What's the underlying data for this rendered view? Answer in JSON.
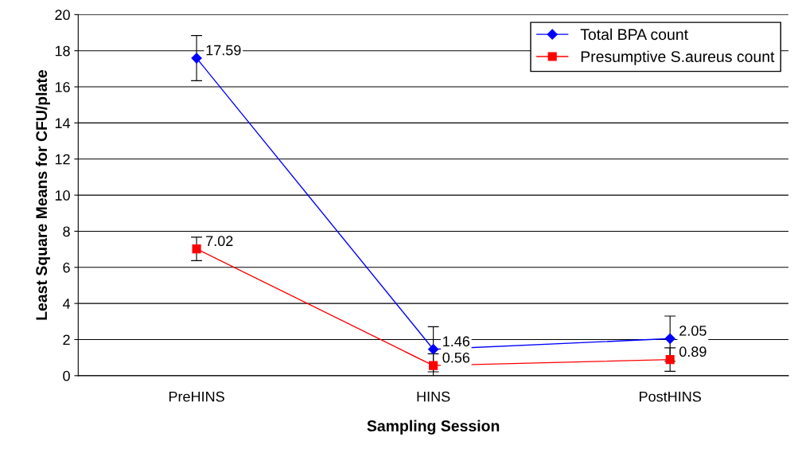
{
  "chart_data": {
    "type": "line",
    "xlabel": "Sampling Session",
    "ylabel": "Least Square Means for CFU/plate",
    "categories": [
      "PreHINS",
      "HINS",
      "PostHINS"
    ],
    "series": [
      {
        "name": "Total BPA count",
        "color": "#0000ff",
        "values": [
          17.59,
          1.46,
          2.05
        ],
        "errors": [
          1.25,
          1.25,
          1.25
        ],
        "marker": "diamond"
      },
      {
        "name": "Presumptive S.aureus count",
        "color": "#ff0000",
        "values": [
          7.02,
          0.56,
          0.89
        ],
        "errors": [
          0.65,
          0.65,
          0.65
        ],
        "marker": "square"
      }
    ],
    "ylim": [
      0,
      20
    ],
    "yticks": [
      0,
      2,
      4,
      6,
      8,
      10,
      12,
      14,
      16,
      18,
      20
    ],
    "grid": "y",
    "legend": "top right",
    "data_labels": true,
    "line_style": "solid"
  }
}
